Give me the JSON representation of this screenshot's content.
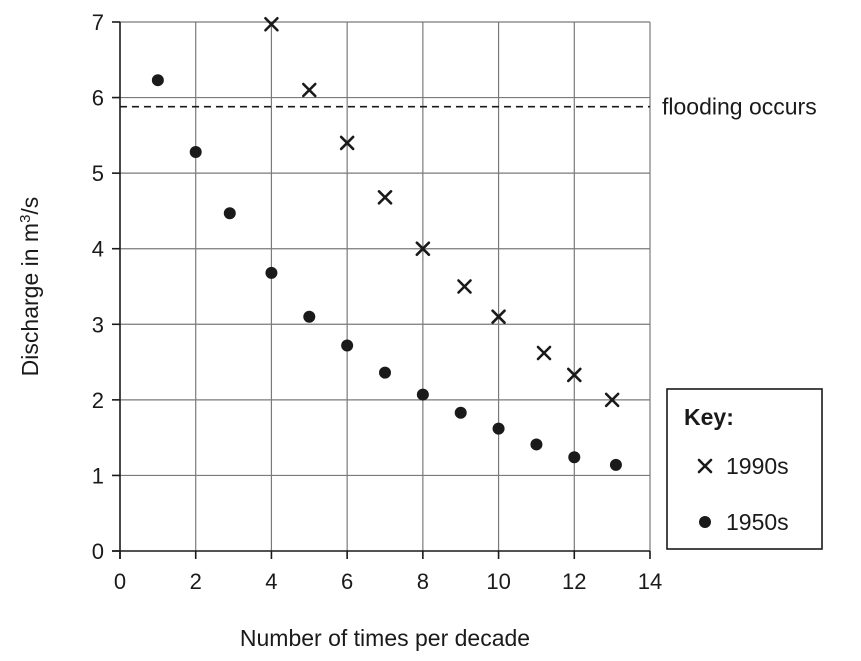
{
  "chart_data": {
    "type": "scatter",
    "xlabel": "Number of times per decade",
    "ylabel_prefix": "Discharge in m",
    "ylabel_superscript": "3",
    "ylabel_suffix": "/s",
    "xlim": [
      0,
      14
    ],
    "ylim": [
      0,
      7
    ],
    "xticks": [
      0,
      2,
      4,
      6,
      8,
      10,
      12,
      14
    ],
    "yticks": [
      0,
      1,
      2,
      3,
      4,
      5,
      6,
      7
    ],
    "grid": true,
    "legend_position": "right",
    "threshold": {
      "y": 5.88,
      "label": "flooding occurs",
      "style": "dashed"
    },
    "series": [
      {
        "name": "1990s",
        "marker": "x",
        "points": [
          [
            4,
            6.97
          ],
          [
            5,
            6.1
          ],
          [
            6,
            5.4
          ],
          [
            7,
            4.68
          ],
          [
            8,
            4.0
          ],
          [
            9.1,
            3.5
          ],
          [
            10,
            3.1
          ],
          [
            11.2,
            2.62
          ],
          [
            12,
            2.33
          ],
          [
            13,
            2.0
          ]
        ]
      },
      {
        "name": "1950s",
        "marker": "dot",
        "points": [
          [
            1,
            6.23
          ],
          [
            2,
            5.28
          ],
          [
            2.9,
            4.47
          ],
          [
            4,
            3.68
          ],
          [
            5,
            3.1
          ],
          [
            6,
            2.72
          ],
          [
            7,
            2.36
          ],
          [
            8,
            2.07
          ],
          [
            9,
            1.83
          ],
          [
            10,
            1.62
          ],
          [
            11,
            1.41
          ],
          [
            12,
            1.24
          ],
          [
            13.1,
            1.14
          ]
        ]
      }
    ]
  },
  "key": {
    "title": "Key:"
  },
  "colors": {
    "ink": "#1a1a1a",
    "grid": "#7a7a7a",
    "background": "#ffffff"
  }
}
